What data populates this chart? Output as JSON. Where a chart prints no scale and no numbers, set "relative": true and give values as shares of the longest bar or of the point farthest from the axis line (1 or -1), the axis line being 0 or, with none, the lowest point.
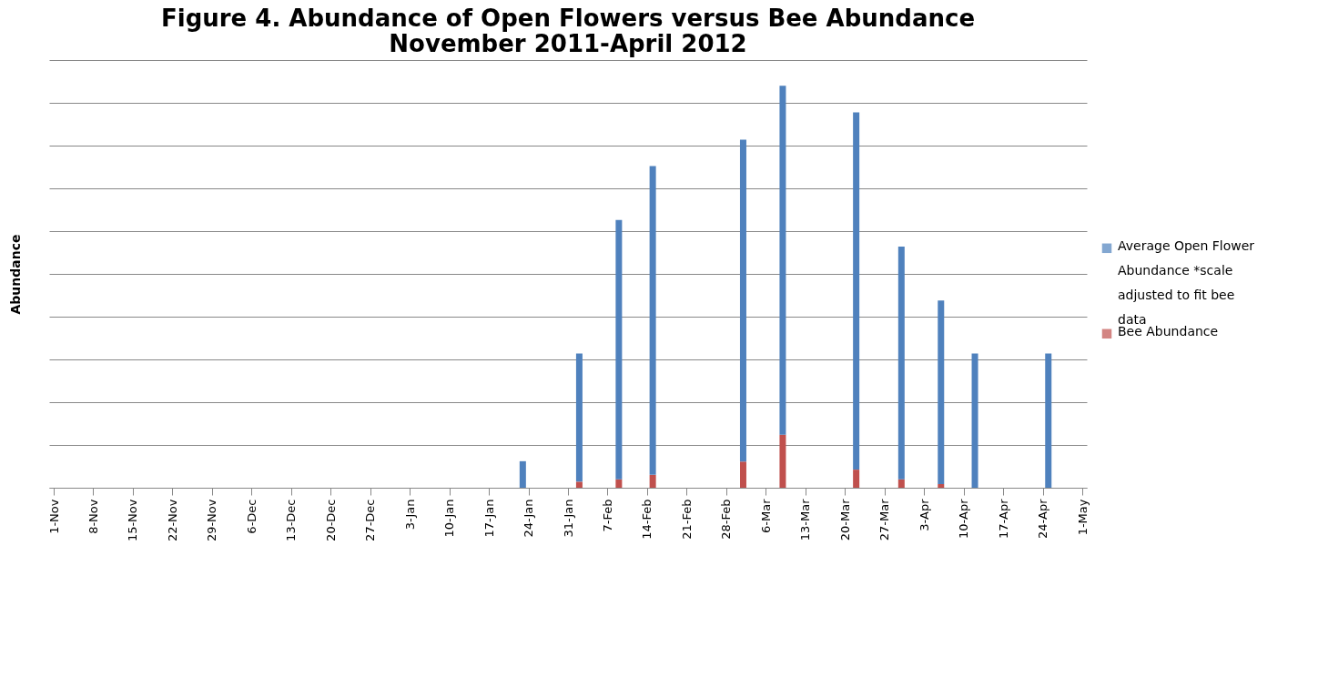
{
  "chart_data": {
    "type": "bar",
    "title": "Figure 4. Abundance of Open Flowers versus Bee Abundance November 2011-April 2012",
    "ylabel": "Abundance",
    "relative": true,
    "stacked": true,
    "grid": "y",
    "legend": "right",
    "x": [
      "2012-01-23",
      "2012-02-02",
      "2012-02-09",
      "2012-02-15",
      "2012-03-02",
      "2012-03-09",
      "2012-03-22",
      "2012-03-30",
      "2012-04-06",
      "2012-04-12",
      "2012-04-25"
    ],
    "series": [
      {
        "name": "Bee Abundance",
        "color": "#c0504d",
        "values": [
          0,
          0.015,
          0.021,
          0.032,
          0.065,
          0.132,
          0.045,
          0.021,
          0.009,
          0,
          0
        ]
      },
      {
        "name": "Average Open Flower Abundance *scale adjusted to fit bee data",
        "color": "#4f81bd",
        "values": [
          0.066,
          0.319,
          0.645,
          0.768,
          0.801,
          0.868,
          0.889,
          0.579,
          0.457,
          0.334,
          0.334
        ]
      }
    ],
    "xlim": [
      "2011-11-01",
      "2012-05-01"
    ],
    "xticks": [
      {
        "value": "2011-11-01",
        "label": "1-Nov"
      },
      {
        "value": "2011-11-08",
        "label": "8-Nov"
      },
      {
        "value": "2011-11-15",
        "label": "15-Nov"
      },
      {
        "value": "2011-11-22",
        "label": "22-Nov"
      },
      {
        "value": "2011-11-29",
        "label": "29-Nov"
      },
      {
        "value": "2011-12-06",
        "label": "6-Dec"
      },
      {
        "value": "2011-12-13",
        "label": "13-Dec"
      },
      {
        "value": "2011-12-20",
        "label": "20-Dec"
      },
      {
        "value": "2011-12-27",
        "label": "27-Dec"
      },
      {
        "value": "2012-01-03",
        "label": "3-Jan"
      },
      {
        "value": "2012-01-10",
        "label": "10-Jan"
      },
      {
        "value": "2012-01-17",
        "label": "17-Jan"
      },
      {
        "value": "2012-01-24",
        "label": "24-Jan"
      },
      {
        "value": "2012-01-31",
        "label": "31-Jan"
      },
      {
        "value": "2012-02-07",
        "label": "7-Feb"
      },
      {
        "value": "2012-02-14",
        "label": "14-Feb"
      },
      {
        "value": "2012-02-21",
        "label": "21-Feb"
      },
      {
        "value": "2012-02-28",
        "label": "28-Feb"
      },
      {
        "value": "2012-03-06",
        "label": "6-Mar"
      },
      {
        "value": "2012-03-13",
        "label": "13-Mar"
      },
      {
        "value": "2012-03-20",
        "label": "20-Mar"
      },
      {
        "value": "2012-03-27",
        "label": "27-Mar"
      },
      {
        "value": "2012-04-03",
        "label": "3-Apr"
      },
      {
        "value": "2012-04-10",
        "label": "10-Apr"
      },
      {
        "value": "2012-04-17",
        "label": "17-Apr"
      },
      {
        "value": "2012-04-24",
        "label": "24-Apr"
      },
      {
        "value": "2012-05-01",
        "label": "1-May"
      }
    ]
  }
}
